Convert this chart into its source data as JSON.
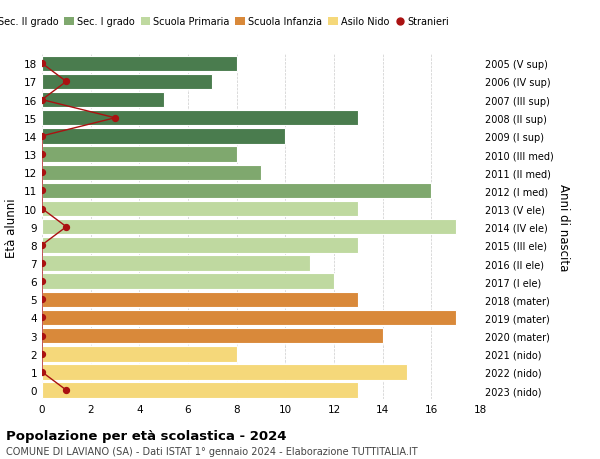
{
  "ages": [
    18,
    17,
    16,
    15,
    14,
    13,
    12,
    11,
    10,
    9,
    8,
    7,
    6,
    5,
    4,
    3,
    2,
    1,
    0
  ],
  "right_labels": [
    "2005 (V sup)",
    "2006 (IV sup)",
    "2007 (III sup)",
    "2008 (II sup)",
    "2009 (I sup)",
    "2010 (III med)",
    "2011 (II med)",
    "2012 (I med)",
    "2013 (V ele)",
    "2014 (IV ele)",
    "2015 (III ele)",
    "2016 (II ele)",
    "2017 (I ele)",
    "2018 (mater)",
    "2019 (mater)",
    "2020 (mater)",
    "2021 (nido)",
    "2022 (nido)",
    "2023 (nido)"
  ],
  "bar_values": [
    8,
    7,
    5,
    13,
    10,
    8,
    9,
    16,
    13,
    17,
    13,
    11,
    12,
    13,
    17,
    14,
    8,
    15,
    13
  ],
  "bar_colors": [
    "#4a7c4e",
    "#4a7c4e",
    "#4a7c4e",
    "#4a7c4e",
    "#4a7c4e",
    "#7fa86e",
    "#7fa86e",
    "#7fa86e",
    "#bfd9a0",
    "#bfd9a0",
    "#bfd9a0",
    "#bfd9a0",
    "#bfd9a0",
    "#d9893a",
    "#d9893a",
    "#d9893a",
    "#f5d87a",
    "#f5d87a",
    "#f5d87a"
  ],
  "stranieri_values": [
    0,
    1,
    0,
    3,
    0,
    0,
    0,
    0,
    0,
    1,
    0,
    0,
    0,
    0,
    0,
    0,
    0,
    0,
    1
  ],
  "stranieri_color": "#aa1111",
  "legend_labels": [
    "Sec. II grado",
    "Sec. I grado",
    "Scuola Primaria",
    "Scuola Infanzia",
    "Asilo Nido",
    "Stranieri"
  ],
  "legend_colors": [
    "#4a7c4e",
    "#7fa86e",
    "#bfd9a0",
    "#d9893a",
    "#f5d87a",
    "#aa1111"
  ],
  "ylabel": "Età alunni",
  "ylabel_right": "Anni di nascita",
  "title1": "Popolazione per età scolastica - 2024",
  "title2": "COMUNE DI LAVIANO (SA) - Dati ISTAT 1° gennaio 2024 - Elaborazione TUTTITALIA.IT",
  "xlim": [
    0,
    18
  ],
  "background_color": "#ffffff",
  "bar_edge_color": "#ffffff"
}
